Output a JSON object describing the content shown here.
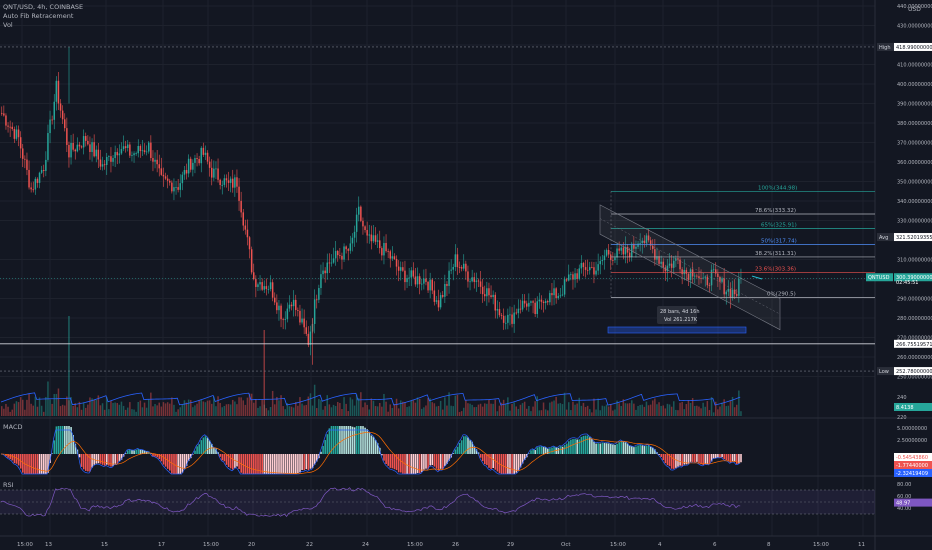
{
  "header": {
    "symbol_line": "QNT/USD, 4h, COINBASE",
    "indicator_fib": "Auto Fib Retracement",
    "indicator_vol": "Vol",
    "currency_tag": "USD"
  },
  "panes": {
    "macd_label": "MACD",
    "rsi_label": "RSI"
  },
  "colors": {
    "up": "#26a69a",
    "down": "#ef5350",
    "bg": "#131722",
    "grid": "#1e222d",
    "fib": "#2962ff"
  },
  "price_axis": {
    "ticks": [
      "440.00000000",
      "430.00000000",
      "420.00000000",
      "410.00000000",
      "400.00000000",
      "390.00000000",
      "380.00000000",
      "370.00000000",
      "360.00000000",
      "350.00000000",
      "340.00000000",
      "330.00000000",
      "310.00000000",
      "300.00000000",
      "290.00000000",
      "280.00000000",
      "270.00000000",
      "260.00000000",
      "250.00000000"
    ],
    "high_label": "High",
    "high_value": "418.99000000",
    "avg_label": "Avg",
    "avg_value": "321.52019355",
    "low_label": "Low",
    "low_value": "252.78000000",
    "line_value": "266.75519571",
    "last_price": "300.39000000",
    "countdown": "02:45:51",
    "symbol_tag": "QNTUSD",
    "vol_value": "8.4138",
    "vol_ticks": [
      "240",
      "220"
    ]
  },
  "macd_axis": {
    "ticks": [
      "5.00000000",
      "2.50000000"
    ],
    "hist_value": "-0.54543860",
    "macd_value": "-1.77440000",
    "signal_value": "-2.32419409"
  },
  "rsi_axis": {
    "ticks": [
      "80.00",
      "60.00",
      "40.00"
    ],
    "value": "48.97"
  },
  "time_axis": [
    "15:00",
    "13",
    "15",
    "17",
    "15:00",
    "20",
    "22",
    "24",
    "15:00",
    "26",
    "29",
    "Oct",
    "15:00",
    "4",
    "6",
    "8",
    "15:00",
    "11"
  ],
  "fib_levels": [
    {
      "label": "100%(344.98)",
      "value": 344.98,
      "color": "#26a69a"
    },
    {
      "label": "78.6%(333.32)",
      "value": 333.32,
      "color": "#b2b5be"
    },
    {
      "label": "65%(325.91)",
      "value": 325.91,
      "color": "#26a69a"
    },
    {
      "label": "50%(317.74)",
      "value": 317.74,
      "color": "#4f8ef7"
    },
    {
      "label": "38.2%(311.31)",
      "value": 311.31,
      "color": "#b2b5be"
    },
    {
      "label": "23.6%(303.36)",
      "value": 303.36,
      "color": "#ef5350"
    },
    {
      "label": "0%(290.5)",
      "value": 290.5,
      "color": "#b2b5be"
    }
  ],
  "measure_box": {
    "bars_text": "28 bars, 4d 16h",
    "vol_text": "Vol 261.217K"
  },
  "chart_data": {
    "type": "candlestick",
    "close_anchors": [
      [
        0,
        385
      ],
      [
        8,
        372
      ],
      [
        14,
        346
      ],
      [
        20,
        358
      ],
      [
        26,
        398
      ],
      [
        32,
        365
      ],
      [
        40,
        372
      ],
      [
        48,
        358
      ],
      [
        56,
        368
      ],
      [
        62,
        364
      ],
      [
        70,
        368
      ],
      [
        76,
        350
      ],
      [
        84,
        348
      ],
      [
        90,
        360
      ],
      [
        96,
        364
      ],
      [
        100,
        355
      ],
      [
        104,
        352
      ],
      [
        108,
        348
      ],
      [
        112,
        350
      ],
      [
        120,
        300
      ],
      [
        128,
        296
      ],
      [
        134,
        280
      ],
      [
        138,
        290
      ],
      [
        146,
        268
      ],
      [
        152,
        305
      ],
      [
        160,
        312
      ],
      [
        166,
        315
      ],
      [
        170,
        334
      ],
      [
        174,
        320
      ],
      [
        178,
        318
      ],
      [
        184,
        313
      ],
      [
        190,
        303
      ],
      [
        196,
        300
      ],
      [
        202,
        300
      ],
      [
        208,
        288
      ],
      [
        212,
        298
      ],
      [
        216,
        310
      ],
      [
        222,
        302
      ],
      [
        226,
        300
      ],
      [
        232,
        292
      ],
      [
        238,
        282
      ],
      [
        242,
        279
      ],
      [
        246,
        286
      ],
      [
        250,
        288
      ],
      [
        254,
        283
      ],
      [
        258,
        291
      ],
      [
        262,
        291
      ],
      [
        266,
        293
      ],
      [
        270,
        300
      ],
      [
        274,
        303
      ],
      [
        278,
        306
      ],
      [
        284,
        305
      ],
      [
        288,
        314
      ],
      [
        292,
        312
      ],
      [
        296,
        313
      ],
      [
        300,
        315
      ],
      [
        304,
        322
      ],
      [
        310,
        315
      ],
      [
        316,
        306
      ],
      [
        322,
        310
      ],
      [
        326,
        303
      ],
      [
        330,
        305
      ],
      [
        334,
        297
      ],
      [
        338,
        302
      ],
      [
        342,
        298
      ],
      [
        346,
        294
      ],
      [
        350,
        293
      ],
      [
        352,
        300
      ]
    ],
    "ylim": [
      252.78,
      440
    ],
    "high": 418.99,
    "low": 252.78,
    "avg": 321.52,
    "horizontal_line": 266.76,
    "last": 300.39,
    "rsi_range": [
      30,
      70
    ],
    "macd_ticks": [
      5,
      2.5
    ],
    "rsi_ticks": [
      80,
      60,
      40
    ]
  }
}
